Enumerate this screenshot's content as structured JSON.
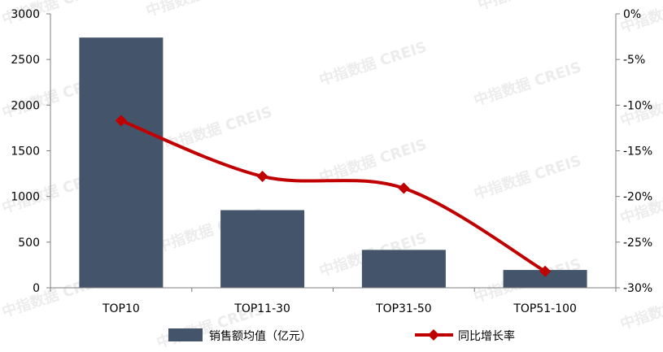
{
  "watermark": "中指数据 CREIS",
  "colors": {
    "bar": "#44546a",
    "line": "#c00000",
    "axis": "#7f7f7f",
    "text": "#000000"
  },
  "legend": {
    "bar_label": "销售额均值（亿元）",
    "line_label": "同比增长率"
  },
  "chart_data": {
    "type": "bar",
    "categories": [
      "TOP10",
      "TOP11-30",
      "TOP31-50",
      "TOP51-100"
    ],
    "series": [
      {
        "name": "销售额均值（亿元）",
        "type": "bar",
        "axis": "left",
        "values": [
          2740,
          850,
          415,
          195
        ]
      },
      {
        "name": "同比增长率",
        "type": "line",
        "axis": "right",
        "smooth": true,
        "marker": "diamond",
        "values": [
          -11.7,
          -17.8,
          -19.1,
          -28.2
        ]
      }
    ],
    "y_left": {
      "min": 0,
      "max": 3000,
      "ticks": [
        0,
        500,
        1000,
        1500,
        2000,
        2500,
        3000
      ],
      "tick_labels": [
        "0",
        "500",
        "1000",
        "1500",
        "2000",
        "2500",
        "3000"
      ]
    },
    "y_right": {
      "min": -30,
      "max": 0,
      "ticks": [
        0,
        -5,
        -10,
        -15,
        -20,
        -25,
        -30
      ],
      "tick_labels": [
        "0%",
        "-5%",
        "-10%",
        "-15%",
        "-20%",
        "-25%",
        "-30%"
      ]
    },
    "title": "",
    "xlabel": "",
    "grid": false,
    "legend_position": "bottom"
  }
}
